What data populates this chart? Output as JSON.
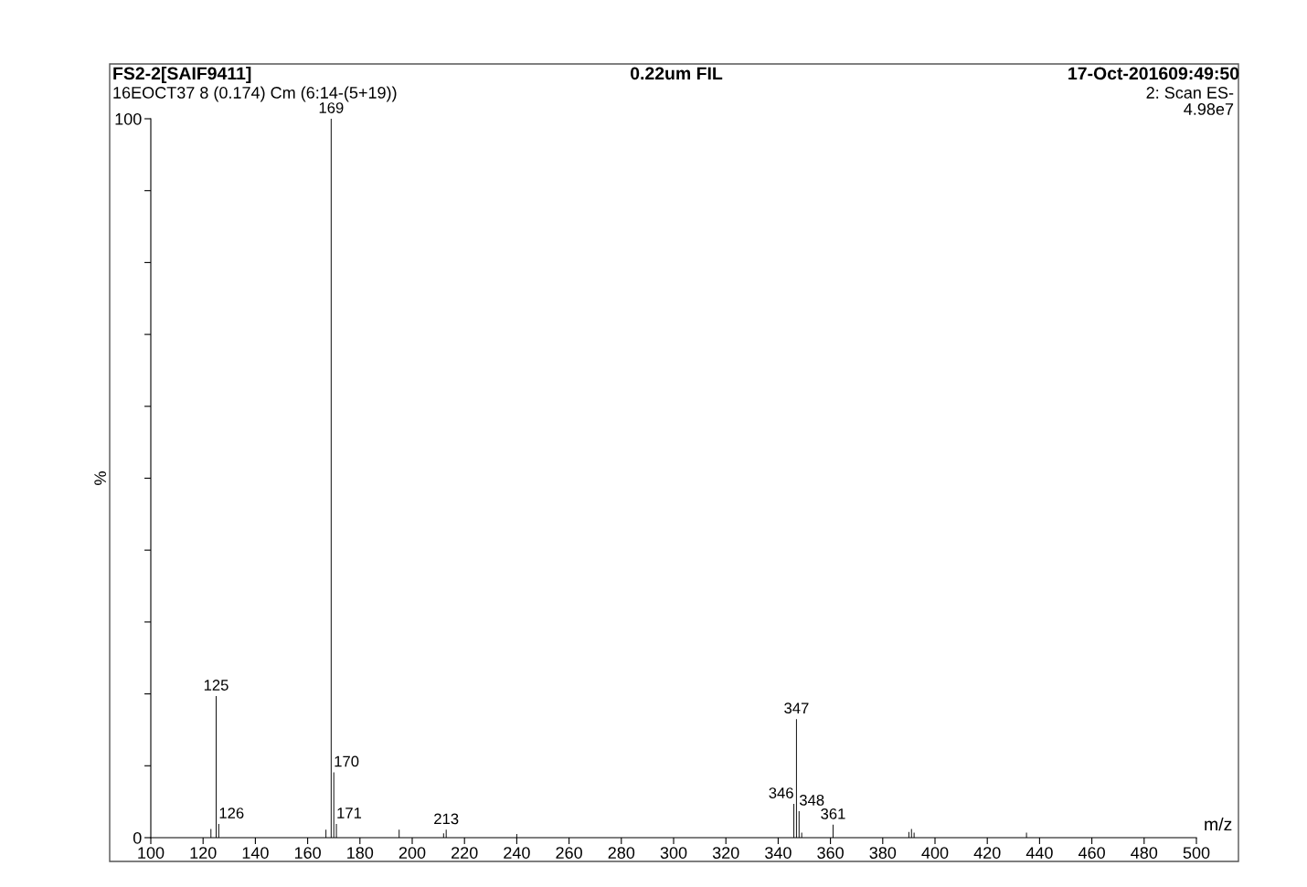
{
  "chart_data": {
    "type": "bar",
    "title": "FS2-2[SAIF9411]",
    "subtitle": "16EOCT37 8 (0.174) Cm (6:14-(5+19))",
    "xlabel": "m/z",
    "ylabel": "%",
    "color": "#111111",
    "x": [
      123,
      125,
      126,
      167,
      169,
      170,
      171,
      195,
      212,
      213,
      240,
      346,
      347,
      348,
      349,
      361,
      390,
      391,
      392,
      435
    ],
    "values": [
      1.2,
      19.7,
      1.9,
      1.1,
      100,
      9.1,
      1.9,
      1.1,
      0.6,
      1.1,
      0.5,
      4.7,
      16.5,
      3.7,
      0.7,
      1.8,
      0.8,
      1.2,
      0.7,
      0.7
    ],
    "annotations": [
      {
        "text": "125",
        "x": 125,
        "y": 19.7
      },
      {
        "text": "126",
        "x": 126,
        "y": 1.9
      },
      {
        "text": "169",
        "x": 169,
        "y": 100
      },
      {
        "text": "170",
        "x": 170,
        "y": 9.1
      },
      {
        "text": "171",
        "x": 171,
        "y": 1.9
      },
      {
        "text": "213",
        "x": 213,
        "y": 1.1
      },
      {
        "text": "346",
        "x": 346,
        "y": 4.7
      },
      {
        "text": "347",
        "x": 347,
        "y": 16.5
      },
      {
        "text": "348",
        "x": 348,
        "y": 3.7
      },
      {
        "text": "361",
        "x": 361,
        "y": 1.8
      },
      "0.22um FIL",
      "17-Oct-201609:49:50",
      "2: Scan ES-",
      "4.98e7"
    ],
    "xlim": [
      100,
      500
    ],
    "xticks": [
      100,
      120,
      140,
      160,
      180,
      200,
      220,
      240,
      260,
      280,
      300,
      320,
      340,
      360,
      380,
      400,
      420,
      440,
      460,
      480,
      500
    ],
    "ylim": [
      0,
      100
    ],
    "yticks": [
      0,
      {
        "value": 10,
        "label": null
      },
      {
        "value": 20,
        "label": null
      },
      {
        "value": 30,
        "label": null
      },
      {
        "value": 40,
        "label": null
      },
      {
        "value": 50,
        "label": null
      },
      {
        "value": 60,
        "label": null
      },
      {
        "value": 70,
        "label": null
      },
      {
        "value": 80,
        "label": null
      },
      {
        "value": 90,
        "label": null
      },
      100
    ],
    "grid": false
  }
}
